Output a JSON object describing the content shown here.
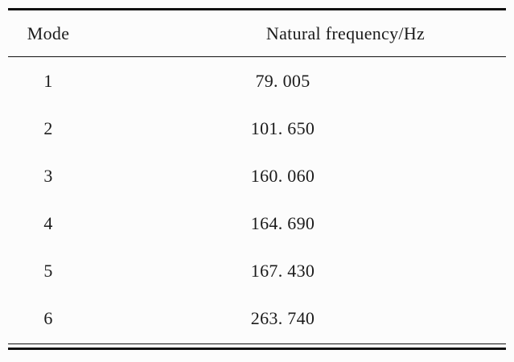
{
  "table": {
    "columns": [
      "Mode",
      "Natural frequency/Hz"
    ],
    "rows": [
      {
        "mode": "1",
        "freq": "79. 005"
      },
      {
        "mode": "2",
        "freq": "101. 650"
      },
      {
        "mode": "3",
        "freq": "160. 060"
      },
      {
        "mode": "4",
        "freq": "164. 690"
      },
      {
        "mode": "5",
        "freq": "167. 430"
      },
      {
        "mode": "6",
        "freq": "263. 740"
      }
    ]
  },
  "style": {
    "rule_color": "#111111",
    "background": "#fcfcfc",
    "text_color": "#1b1b1b"
  }
}
